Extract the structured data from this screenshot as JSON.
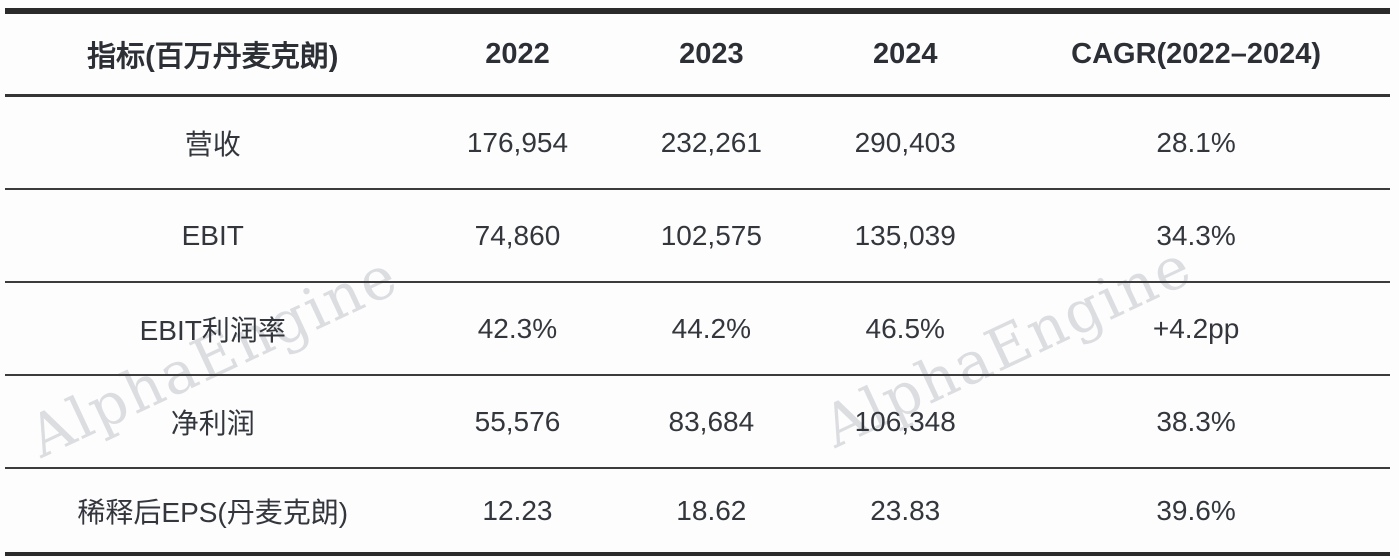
{
  "chart_data": {
    "type": "table",
    "title": "",
    "unit_note": "百万丹麦克朗",
    "columns": [
      "指标(百万丹麦克朗)",
      "2022",
      "2023",
      "2024",
      "CAGR(2022–2024)"
    ],
    "rows": [
      {
        "label": "营收",
        "values": [
          "176,954",
          "232,261",
          "290,403",
          "28.1%"
        ]
      },
      {
        "label": "EBIT",
        "values": [
          "74,860",
          "102,575",
          "135,039",
          "34.3%"
        ]
      },
      {
        "label": "EBIT利润率",
        "values": [
          "42.3%",
          "44.2%",
          "46.5%",
          "+4.2pp"
        ]
      },
      {
        "label": "净利润",
        "values": [
          "55,576",
          "83,684",
          "106,348",
          "38.3%"
        ]
      },
      {
        "label": "稀释后EPS(丹麦克朗)",
        "values": [
          "12.23",
          "18.62",
          "23.83",
          "39.6%"
        ]
      }
    ]
  },
  "watermark": {
    "text": "AlphaEngine",
    "color": "#9aa0a8"
  },
  "colors": {
    "text": "#33373d",
    "border": "#2b2b2b",
    "background": "#fdfdfd"
  }
}
